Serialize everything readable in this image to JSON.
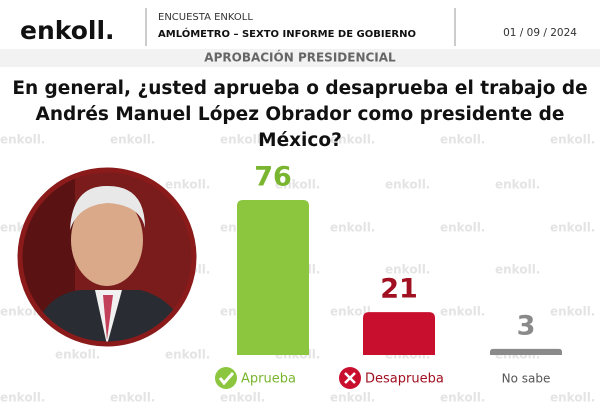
{
  "header": {
    "logo": "enkoll.",
    "survey": "ENCUESTA ENKOLL",
    "subtitle": "AMLÓMETRO – SEXTO INFORME DE GOBIERNO",
    "date": "01 / 09 / 2024",
    "section": "APROBACIÓN PRESIDENCIAL",
    "watermark": "enkoll."
  },
  "chart_data": {
    "type": "bar",
    "title": "En general, ¿usted aprueba o desaprueba el trabajo de Andrés Manuel López Obrador como presidente de México?",
    "categories": [
      "Aprueba",
      "Desaprueba",
      "No sabe"
    ],
    "values": [
      76,
      21,
      3
    ],
    "colors": [
      "#8cc63f",
      "#c8102e",
      "#8a8a8a"
    ],
    "label_colors": [
      "#7ab530",
      "#a01020",
      "#8a8a8a"
    ]
  }
}
